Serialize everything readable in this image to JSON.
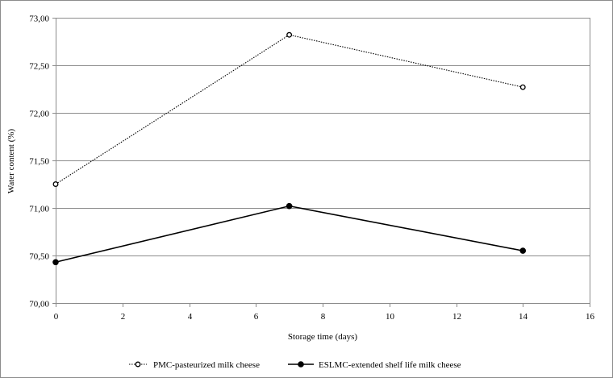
{
  "chart_data": {
    "type": "line",
    "title": "",
    "xlabel": "Storage time (days)",
    "ylabel": "Water content (%)",
    "xlim": [
      0,
      16
    ],
    "ylim": [
      70.0,
      73.0
    ],
    "x_ticks": [
      0,
      2,
      4,
      6,
      8,
      10,
      12,
      14,
      16
    ],
    "x_tick_labels": [
      "0",
      "2",
      "4",
      "6",
      "8",
      "10",
      "12",
      "14",
      "16"
    ],
    "y_ticks": [
      70.0,
      70.5,
      71.0,
      71.5,
      72.0,
      72.5,
      73.0
    ],
    "y_tick_labels": [
      "70,00",
      "70,50",
      "71,00",
      "71,50",
      "72,00",
      "72,50",
      "73,00"
    ],
    "grid": "horizontal",
    "legend_position": "bottom",
    "series": [
      {
        "name": "PMC-pasteurized milk cheese",
        "style": "dotted",
        "marker": "open-circle",
        "color": "#000000",
        "x": [
          0,
          7,
          14
        ],
        "y": [
          71.25,
          72.82,
          72.27
        ]
      },
      {
        "name": "ESLMC-extended shelf life milk cheese",
        "style": "solid",
        "marker": "filled-circle",
        "color": "#000000",
        "x": [
          0,
          7,
          14
        ],
        "y": [
          70.43,
          71.02,
          70.55
        ]
      }
    ]
  }
}
